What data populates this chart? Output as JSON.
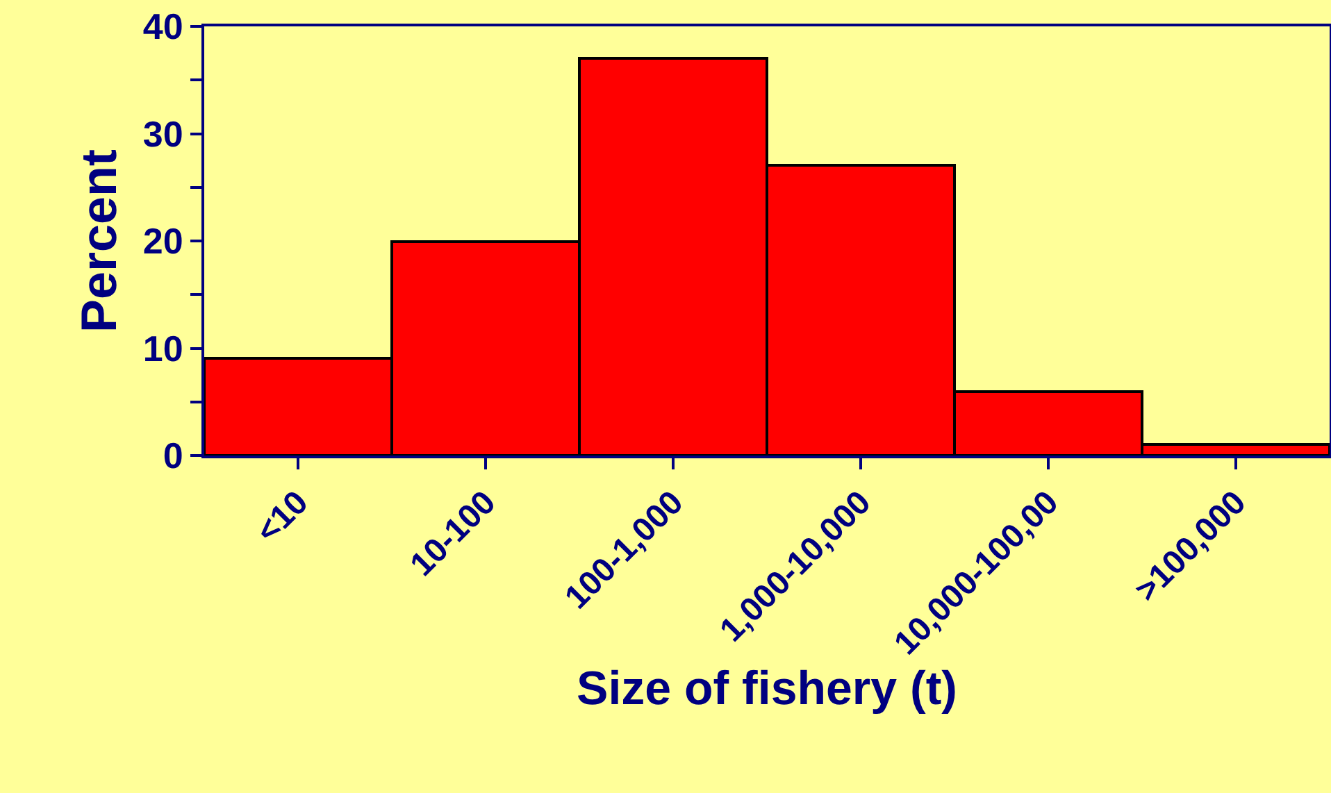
{
  "chart_data": {
    "type": "bar",
    "xlabel": "Size of fishery (t)",
    "ylabel": "Percent",
    "categories": [
      "<10",
      "10-100",
      "100-1,000",
      "1,000-10,000",
      "10,000-100,00",
      ">100,000"
    ],
    "values": [
      9,
      20,
      37,
      27,
      6,
      1
    ],
    "color": "#ff0000",
    "ylim": [
      0,
      40
    ],
    "yticks": [
      0,
      {
        "value": 5,
        "label": null
      },
      10,
      {
        "value": 15,
        "label": null
      },
      20,
      {
        "value": 25,
        "label": null
      },
      30,
      {
        "value": 35,
        "label": null
      },
      40
    ],
    "grid": false,
    "legend": false
  }
}
